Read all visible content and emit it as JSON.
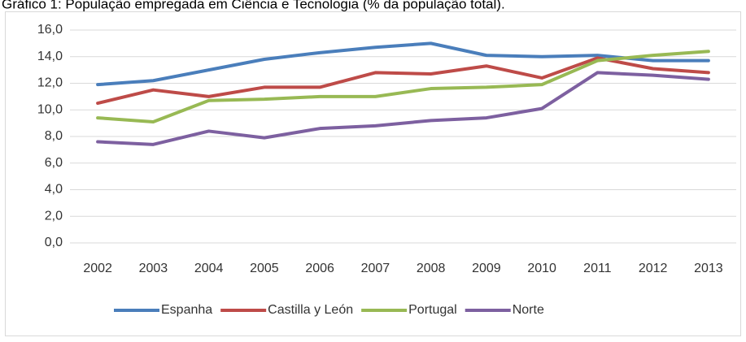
{
  "chart_data": {
    "type": "line",
    "title": "Gráfico 1: População empregada em Ciência e Tecnologia (% da população total).",
    "categories": [
      "2002",
      "2003",
      "2004",
      "2005",
      "2006",
      "2007",
      "2008",
      "2009",
      "2010",
      "2011",
      "2012",
      "2013"
    ],
    "series": [
      {
        "name": "Espanha",
        "color": "#4a7ebb",
        "values": [
          11.9,
          12.2,
          13.0,
          13.8,
          14.3,
          14.7,
          15.0,
          14.1,
          14.0,
          14.1,
          13.7,
          13.7
        ]
      },
      {
        "name": "Castilla y León",
        "color": "#be4b48",
        "values": [
          10.5,
          11.5,
          11.0,
          11.7,
          11.7,
          12.8,
          12.7,
          13.3,
          12.4,
          13.9,
          13.1,
          12.8
        ]
      },
      {
        "name": "Portugal",
        "color": "#98b954",
        "values": [
          9.4,
          9.1,
          10.7,
          10.8,
          11.0,
          11.0,
          11.6,
          11.7,
          11.9,
          13.7,
          14.1,
          14.4
        ]
      },
      {
        "name": "Norte",
        "color": "#7d60a0",
        "values": [
          7.6,
          7.4,
          8.4,
          7.9,
          8.6,
          8.8,
          9.2,
          9.4,
          10.1,
          12.8,
          12.6,
          12.3
        ]
      }
    ],
    "ylim": [
      0,
      16
    ],
    "yticks": [
      {
        "value": 0,
        "label": "0,0"
      },
      {
        "value": 2,
        "label": "2,0"
      },
      {
        "value": 4,
        "label": "4,0"
      },
      {
        "value": 6,
        "label": "6,0"
      },
      {
        "value": 8,
        "label": "8,0"
      },
      {
        "value": 10,
        "label": "10,0"
      },
      {
        "value": 12,
        "label": "12,0"
      },
      {
        "value": 14,
        "label": "14,0"
      },
      {
        "value": 16,
        "label": "16,0"
      }
    ],
    "grid": true,
    "legend": "bottom"
  }
}
